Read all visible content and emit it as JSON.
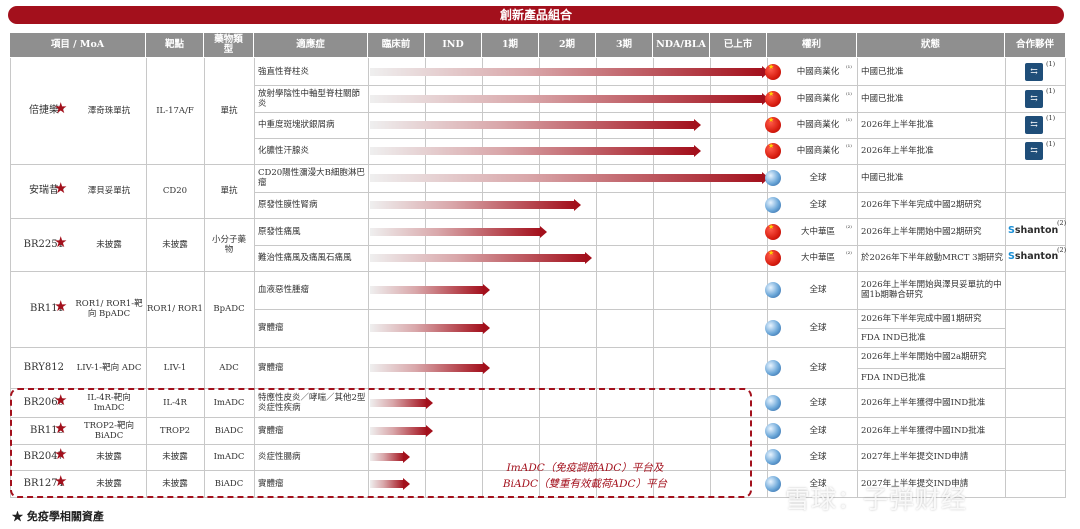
{
  "banner_title": "創新產品組合",
  "headers": {
    "project": "項目 / MoA",
    "target": "靶點",
    "drug_type": "藥物類型",
    "indication": "適應症",
    "preclinical": "臨床前",
    "ind": "IND",
    "phase1": "1期",
    "phase2": "2期",
    "phase3": "3期",
    "nda": "NDA/BLA",
    "marketed": "已上市",
    "rights": "權利",
    "status": "狀態",
    "partner": "合作夥伴"
  },
  "colors": {
    "brand_red": "#a3101c",
    "header_gray": "#8f8f8f"
  },
  "products": [
    {
      "name": "倍捷樂",
      "suffix": "*",
      "moa": "澤奇珠單抗",
      "target": "IL-17A/F",
      "type": "單抗",
      "immune_star": true
    },
    {
      "name": "安瑞昔",
      "suffix": "*",
      "moa": "澤貝妥單抗",
      "target": "CD20",
      "type": "單抗",
      "immune_star": true
    },
    {
      "name": "BR2251",
      "suffix": "",
      "moa": "未披露",
      "target": "未披露",
      "type": "小分子藥物",
      "immune_star": true
    },
    {
      "name": "BR111",
      "suffix": "",
      "moa": "ROR1/ ROR1-靶向 BpADC",
      "target": "ROR1/ ROR1",
      "type": "BpADC",
      "immune_star": true
    },
    {
      "name": "BRY812",
      "suffix": "",
      "moa": "LIV-1-靶向 ADC",
      "target": "LIV-1",
      "type": "ADC",
      "immune_star": false
    },
    {
      "name": "BR2060",
      "suffix": "",
      "moa": "IL-4R-靶向 ImADC",
      "target": "IL-4R",
      "type": "ImADC",
      "immune_star": true
    },
    {
      "name": "BR113",
      "suffix": "",
      "moa": "TROP2-靶向 BiADC",
      "target": "TROP2",
      "type": "BiADC",
      "immune_star": true
    },
    {
      "name": "BR2047",
      "suffix": "",
      "moa": "未披露",
      "target": "未披露",
      "type": "ImADC",
      "immune_star": true
    },
    {
      "name": "BR1274",
      "suffix": "",
      "moa": "未披露",
      "target": "未披露",
      "type": "BiADC",
      "immune_star": true
    }
  ],
  "rows": [
    {
      "indication": "強直性脊柱炎",
      "progress": 7.0,
      "rights_icon": "china-flag-icon",
      "rights": "中國商業化",
      "rights_sup": "⁽¹⁾",
      "status": "中國已批准",
      "partner": "partner-logo",
      "partner_sup": "(1)"
    },
    {
      "indication": "放射學陰性中軸型脊柱關節炎",
      "progress": 7.0,
      "rights_icon": "china-flag-icon",
      "rights": "中國商業化",
      "rights_sup": "⁽¹⁾",
      "status": "中國已批准",
      "partner": "partner-logo",
      "partner_sup": "(1)"
    },
    {
      "indication": "中重度斑塊狀銀屑病",
      "progress": 5.8,
      "rights_icon": "china-flag-icon",
      "rights": "中國商業化",
      "rights_sup": "⁽¹⁾",
      "status": "2026年上半年批准",
      "partner": "partner-logo",
      "partner_sup": "(1)"
    },
    {
      "indication": "化膿性汗腺炎",
      "progress": 5.8,
      "rights_icon": "china-flag-icon",
      "rights": "中國商業化",
      "rights_sup": "⁽¹⁾",
      "status": "2026年上半年批准",
      "partner": "partner-logo",
      "partner_sup": "(1)"
    },
    {
      "indication": "CD20陽性瀰漫大B細胞淋巴瘤",
      "progress": 7.0,
      "rights_icon": "globe-icon",
      "rights": "全球",
      "rights_sup": "",
      "status": "中國已批准",
      "partner": "",
      "partner_sup": ""
    },
    {
      "indication": "原發性膜性腎病",
      "progress": 3.7,
      "rights_icon": "globe-icon",
      "rights": "全球",
      "rights_sup": "",
      "status": "2026年下半年完成中國2期研究",
      "partner": "",
      "partner_sup": ""
    },
    {
      "indication": "原發性痛風",
      "progress": 3.1,
      "rights_icon": "china-flag-icon",
      "rights": "大中華區",
      "rights_sup": "⁽²⁾",
      "status": "2026年上半年開始中國2期研究",
      "partner": "shanton",
      "partner_sup": "(2)"
    },
    {
      "indication": "難治性痛風及痛風石痛風",
      "progress": 3.9,
      "rights_icon": "china-flag-icon",
      "rights": "大中華區",
      "rights_sup": "⁽²⁾",
      "status": "於2026年下半年啟動MRCT 3期研究",
      "partner": "shanton",
      "partner_sup": "(2)"
    },
    {
      "indication": "血液惡性腫瘤",
      "progress": 2.1,
      "rights_icon": "globe-icon",
      "rights": "全球",
      "rights_sup": "",
      "status": "2026年上半年開始與澤貝妥單抗的中國1b期聯合研究",
      "partner": "",
      "partner_sup": ""
    },
    {
      "indication": "實體瘤",
      "progress": 2.1,
      "rights_icon": "globe-icon",
      "rights": "全球",
      "rights_sup": "",
      "status": "2026年下半年完成中國1期研究",
      "status2": "FDA IND已批准",
      "partner": "",
      "partner_sup": ""
    },
    {
      "indication": "實體瘤",
      "progress": 2.1,
      "rights_icon": "globe-icon",
      "rights": "全球",
      "rights_sup": "",
      "status": "2026年上半年開始中國2a期研究",
      "status2": "FDA IND已批准",
      "partner": "",
      "partner_sup": ""
    },
    {
      "indication": "特應性皮炎／哮喘／其他2型炎症性疾病",
      "progress": 1.1,
      "rights_icon": "globe-icon",
      "rights": "全球",
      "rights_sup": "",
      "status": "2026年上半年獲得中國IND批准",
      "partner": "",
      "partner_sup": ""
    },
    {
      "indication": "實體瘤",
      "progress": 1.1,
      "rights_icon": "globe-icon",
      "rights": "全球",
      "rights_sup": "",
      "status": "2026年上半年獲得中國IND批准",
      "partner": "",
      "partner_sup": ""
    },
    {
      "indication": "炎症性腸病",
      "progress": 0.7,
      "rights_icon": "globe-icon",
      "rights": "全球",
      "rights_sup": "",
      "status": "2027年上半年提交IND申請",
      "partner": "",
      "partner_sup": ""
    },
    {
      "indication": "實體瘤",
      "progress": 0.7,
      "rights_icon": "globe-icon",
      "rights": "全球",
      "rights_sup": "",
      "status": "2027年上半年提交IND申請",
      "partner": "",
      "partner_sup": ""
    }
  ],
  "platform_note": [
    "ImADC（免疫調節ADC）平台及",
    "BiADC（雙重有效載荷ADC）平台"
  ],
  "footnote": "★ 免疫學相關資產",
  "watermark": "雪球：子弹财经",
  "partner_names": {
    "shanton_s": "S",
    "shanton_rest": "shanton"
  }
}
